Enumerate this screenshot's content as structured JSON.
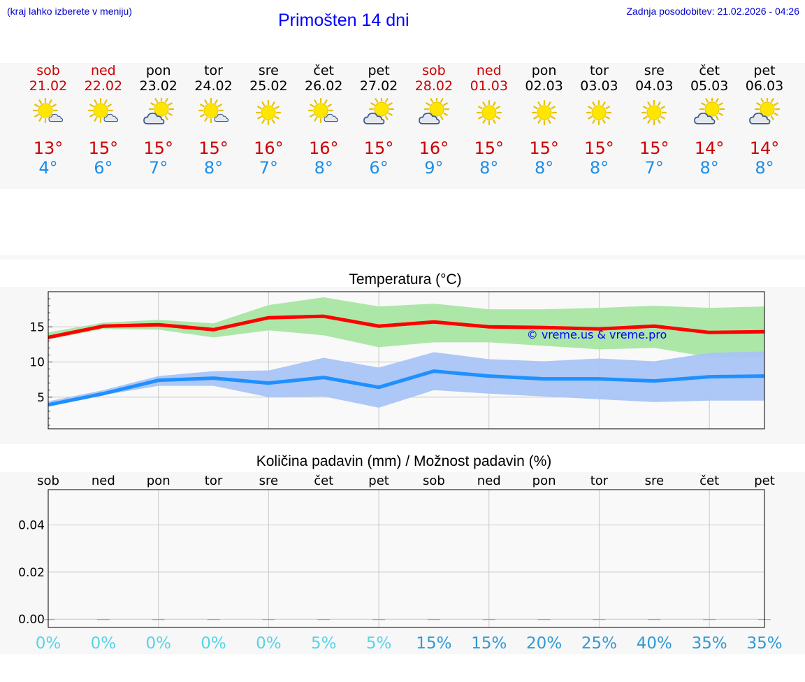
{
  "header": {
    "note": "(kraj lahko izberete v meniju)",
    "title": "Primošten 14 dni",
    "updated": "Zadnja posodobitev: 21.02.2026 - 04:26"
  },
  "colors": {
    "weekend": "#cc0000",
    "max": "#ff0000",
    "min": "#1e90ff",
    "maxBand": "#a8e6a3",
    "minBand": "#a9c4f5",
    "link": "#0000ff"
  },
  "days": [
    {
      "name": "sob",
      "date": "21.02",
      "weekend": true,
      "icon": "sun-cloud-icon",
      "max": "13°",
      "min": "4°"
    },
    {
      "name": "ned",
      "date": "22.02",
      "weekend": true,
      "icon": "sun-cloud-icon",
      "max": "15°",
      "min": "6°"
    },
    {
      "name": "pon",
      "date": "23.02",
      "weekend": false,
      "icon": "cloud-sun-icon",
      "max": "15°",
      "min": "7°"
    },
    {
      "name": "tor",
      "date": "24.02",
      "weekend": false,
      "icon": "sun-cloud-icon",
      "max": "15°",
      "min": "8°"
    },
    {
      "name": "sre",
      "date": "25.02",
      "weekend": false,
      "icon": "sun-icon",
      "max": "16°",
      "min": "7°"
    },
    {
      "name": "čet",
      "date": "26.02",
      "weekend": false,
      "icon": "sun-cloud-icon",
      "max": "16°",
      "min": "8°"
    },
    {
      "name": "pet",
      "date": "27.02",
      "weekend": false,
      "icon": "cloud-sun-icon",
      "max": "15°",
      "min": "6°"
    },
    {
      "name": "sob",
      "date": "28.02",
      "weekend": true,
      "icon": "cloud-sun-icon",
      "max": "16°",
      "min": "9°"
    },
    {
      "name": "ned",
      "date": "01.03",
      "weekend": true,
      "icon": "sun-icon",
      "max": "15°",
      "min": "8°"
    },
    {
      "name": "pon",
      "date": "02.03",
      "weekend": false,
      "icon": "sun-icon",
      "max": "15°",
      "min": "8°"
    },
    {
      "name": "tor",
      "date": "03.03",
      "weekend": false,
      "icon": "sun-icon",
      "max": "15°",
      "min": "8°"
    },
    {
      "name": "sre",
      "date": "04.03",
      "weekend": false,
      "icon": "sun-icon",
      "max": "15°",
      "min": "7°"
    },
    {
      "name": "čet",
      "date": "05.03",
      "weekend": false,
      "icon": "cloud-sun-icon",
      "max": "14°",
      "min": "8°"
    },
    {
      "name": "pet",
      "date": "06.03",
      "weekend": false,
      "icon": "cloud-sun-icon",
      "max": "14°",
      "min": "8°"
    }
  ],
  "chart_data": [
    {
      "type": "line",
      "title": "Temperatura (°C)",
      "xlabel": "",
      "ylabel": "",
      "ylim": [
        0.5,
        20
      ],
      "yticks": [
        5,
        10,
        15
      ],
      "grid": true,
      "watermark": "© vreme.us & vreme.pro",
      "x": [
        0,
        1,
        2,
        3,
        4,
        5,
        6,
        7,
        8,
        9,
        10,
        11,
        12,
        13
      ],
      "series": [
        {
          "name": "max",
          "values": [
            13.5,
            15.1,
            15.3,
            14.6,
            16.3,
            16.5,
            15.1,
            15.7,
            15.0,
            14.9,
            14.7,
            15.1,
            14.2,
            14.3
          ],
          "band_low": [
            13.2,
            14.7,
            14.6,
            13.5,
            14.5,
            13.8,
            12.1,
            12.8,
            12.8,
            12.3,
            11.8,
            12.0,
            10.7,
            10.7
          ],
          "band_high": [
            14.2,
            15.6,
            16.0,
            15.5,
            18.1,
            19.2,
            17.9,
            18.3,
            17.5,
            17.5,
            17.7,
            18.0,
            17.7,
            17.9
          ]
        },
        {
          "name": "min",
          "values": [
            3.9,
            5.5,
            7.4,
            7.7,
            7.0,
            7.8,
            6.4,
            8.7,
            8.0,
            7.6,
            7.6,
            7.3,
            7.9,
            8.0
          ],
          "band_low": [
            3.7,
            5.3,
            6.6,
            6.6,
            5.0,
            5.1,
            3.5,
            6.0,
            5.5,
            5.1,
            4.7,
            4.3,
            4.5,
            4.5
          ],
          "band_high": [
            4.4,
            6.0,
            8.0,
            8.7,
            8.8,
            10.6,
            9.2,
            11.4,
            10.4,
            10.1,
            10.5,
            10.1,
            11.3,
            11.5
          ]
        }
      ]
    },
    {
      "type": "bar",
      "title": "Količina padavin (mm) / Možnost padavin (%)",
      "xlabel": "",
      "ylabel": "",
      "ylim": [
        -0.0035,
        0.055
      ],
      "yticks": [
        0.0,
        0.02,
        0.04
      ],
      "ytick_labels": [
        "0.00",
        "0.02",
        "0.04"
      ],
      "grid": true,
      "categories": [
        "sob",
        "ned",
        "pon",
        "tor",
        "sre",
        "čet",
        "pet",
        "sob",
        "ned",
        "pon",
        "tor",
        "sre",
        "čet",
        "pet"
      ],
      "values": [
        0,
        0,
        0,
        0,
        0,
        0,
        0,
        0,
        0,
        0,
        0,
        0,
        0,
        0
      ],
      "probability": [
        "0%",
        "0%",
        "0%",
        "0%",
        "0%",
        "5%",
        "5%",
        "15%",
        "15%",
        "20%",
        "25%",
        "40%",
        "35%",
        "35%"
      ]
    }
  ]
}
